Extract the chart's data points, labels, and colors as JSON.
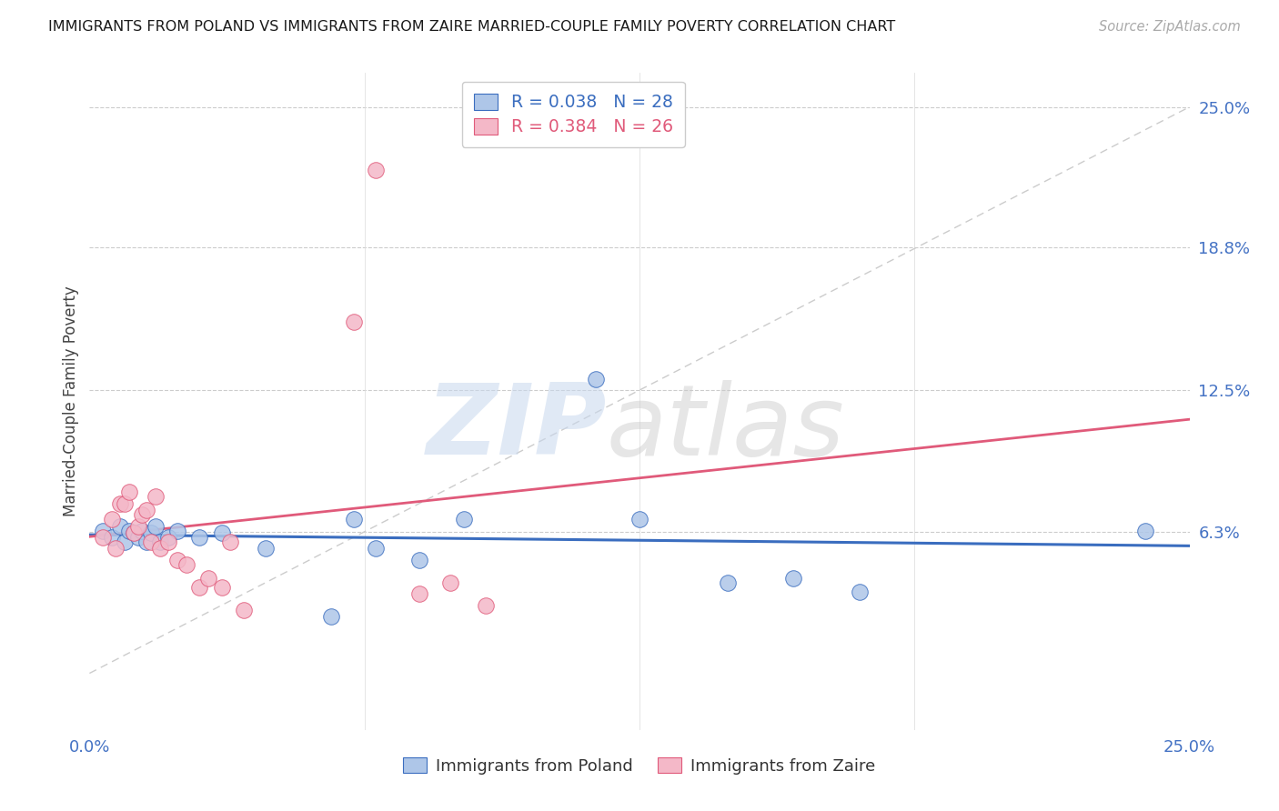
{
  "title": "IMMIGRANTS FROM POLAND VS IMMIGRANTS FROM ZAIRE MARRIED-COUPLE FAMILY POVERTY CORRELATION CHART",
  "source": "Source: ZipAtlas.com",
  "ylabel": "Married-Couple Family Poverty",
  "legend_label_poland": "Immigrants from Poland",
  "legend_label_zaire": "Immigrants from Zaire",
  "poland_color": "#aec6e8",
  "zaire_color": "#f4b8c8",
  "poland_line_color": "#3a6dbf",
  "zaire_line_color": "#e05a7a",
  "diagonal_color": "#cccccc",
  "xlim": [
    0.0,
    0.25
  ],
  "ylim": [
    -0.025,
    0.265
  ],
  "ytick_vals": [
    0.0,
    0.0625,
    0.125,
    0.188,
    0.25
  ],
  "ytick_labels_right": [
    "6.3%",
    "12.5%",
    "18.8%",
    "25.0%"
  ],
  "ytick_vals_right": [
    0.0625,
    0.125,
    0.188,
    0.25
  ],
  "poland_R": 0.038,
  "poland_N": 28,
  "zaire_R": 0.384,
  "zaire_N": 26,
  "poland_points_x": [
    0.003,
    0.005,
    0.007,
    0.008,
    0.009,
    0.01,
    0.011,
    0.012,
    0.013,
    0.014,
    0.015,
    0.016,
    0.018,
    0.02,
    0.025,
    0.03,
    0.04,
    0.055,
    0.06,
    0.065,
    0.075,
    0.085,
    0.115,
    0.125,
    0.145,
    0.16,
    0.175,
    0.24
  ],
  "poland_points_y": [
    0.063,
    0.06,
    0.065,
    0.058,
    0.063,
    0.062,
    0.06,
    0.063,
    0.058,
    0.062,
    0.065,
    0.058,
    0.06,
    0.063,
    0.06,
    0.062,
    0.055,
    0.025,
    0.068,
    0.055,
    0.05,
    0.068,
    0.13,
    0.068,
    0.04,
    0.042,
    0.036,
    0.063
  ],
  "zaire_points_x": [
    0.003,
    0.005,
    0.006,
    0.007,
    0.008,
    0.009,
    0.01,
    0.011,
    0.012,
    0.013,
    0.014,
    0.015,
    0.016,
    0.018,
    0.02,
    0.022,
    0.025,
    0.027,
    0.03,
    0.032,
    0.035,
    0.06,
    0.065,
    0.075,
    0.082,
    0.09
  ],
  "zaire_points_y": [
    0.06,
    0.068,
    0.055,
    0.075,
    0.075,
    0.08,
    0.062,
    0.065,
    0.07,
    0.072,
    0.058,
    0.078,
    0.055,
    0.058,
    0.05,
    0.048,
    0.038,
    0.042,
    0.038,
    0.058,
    0.028,
    0.155,
    0.222,
    0.035,
    0.04,
    0.03
  ]
}
